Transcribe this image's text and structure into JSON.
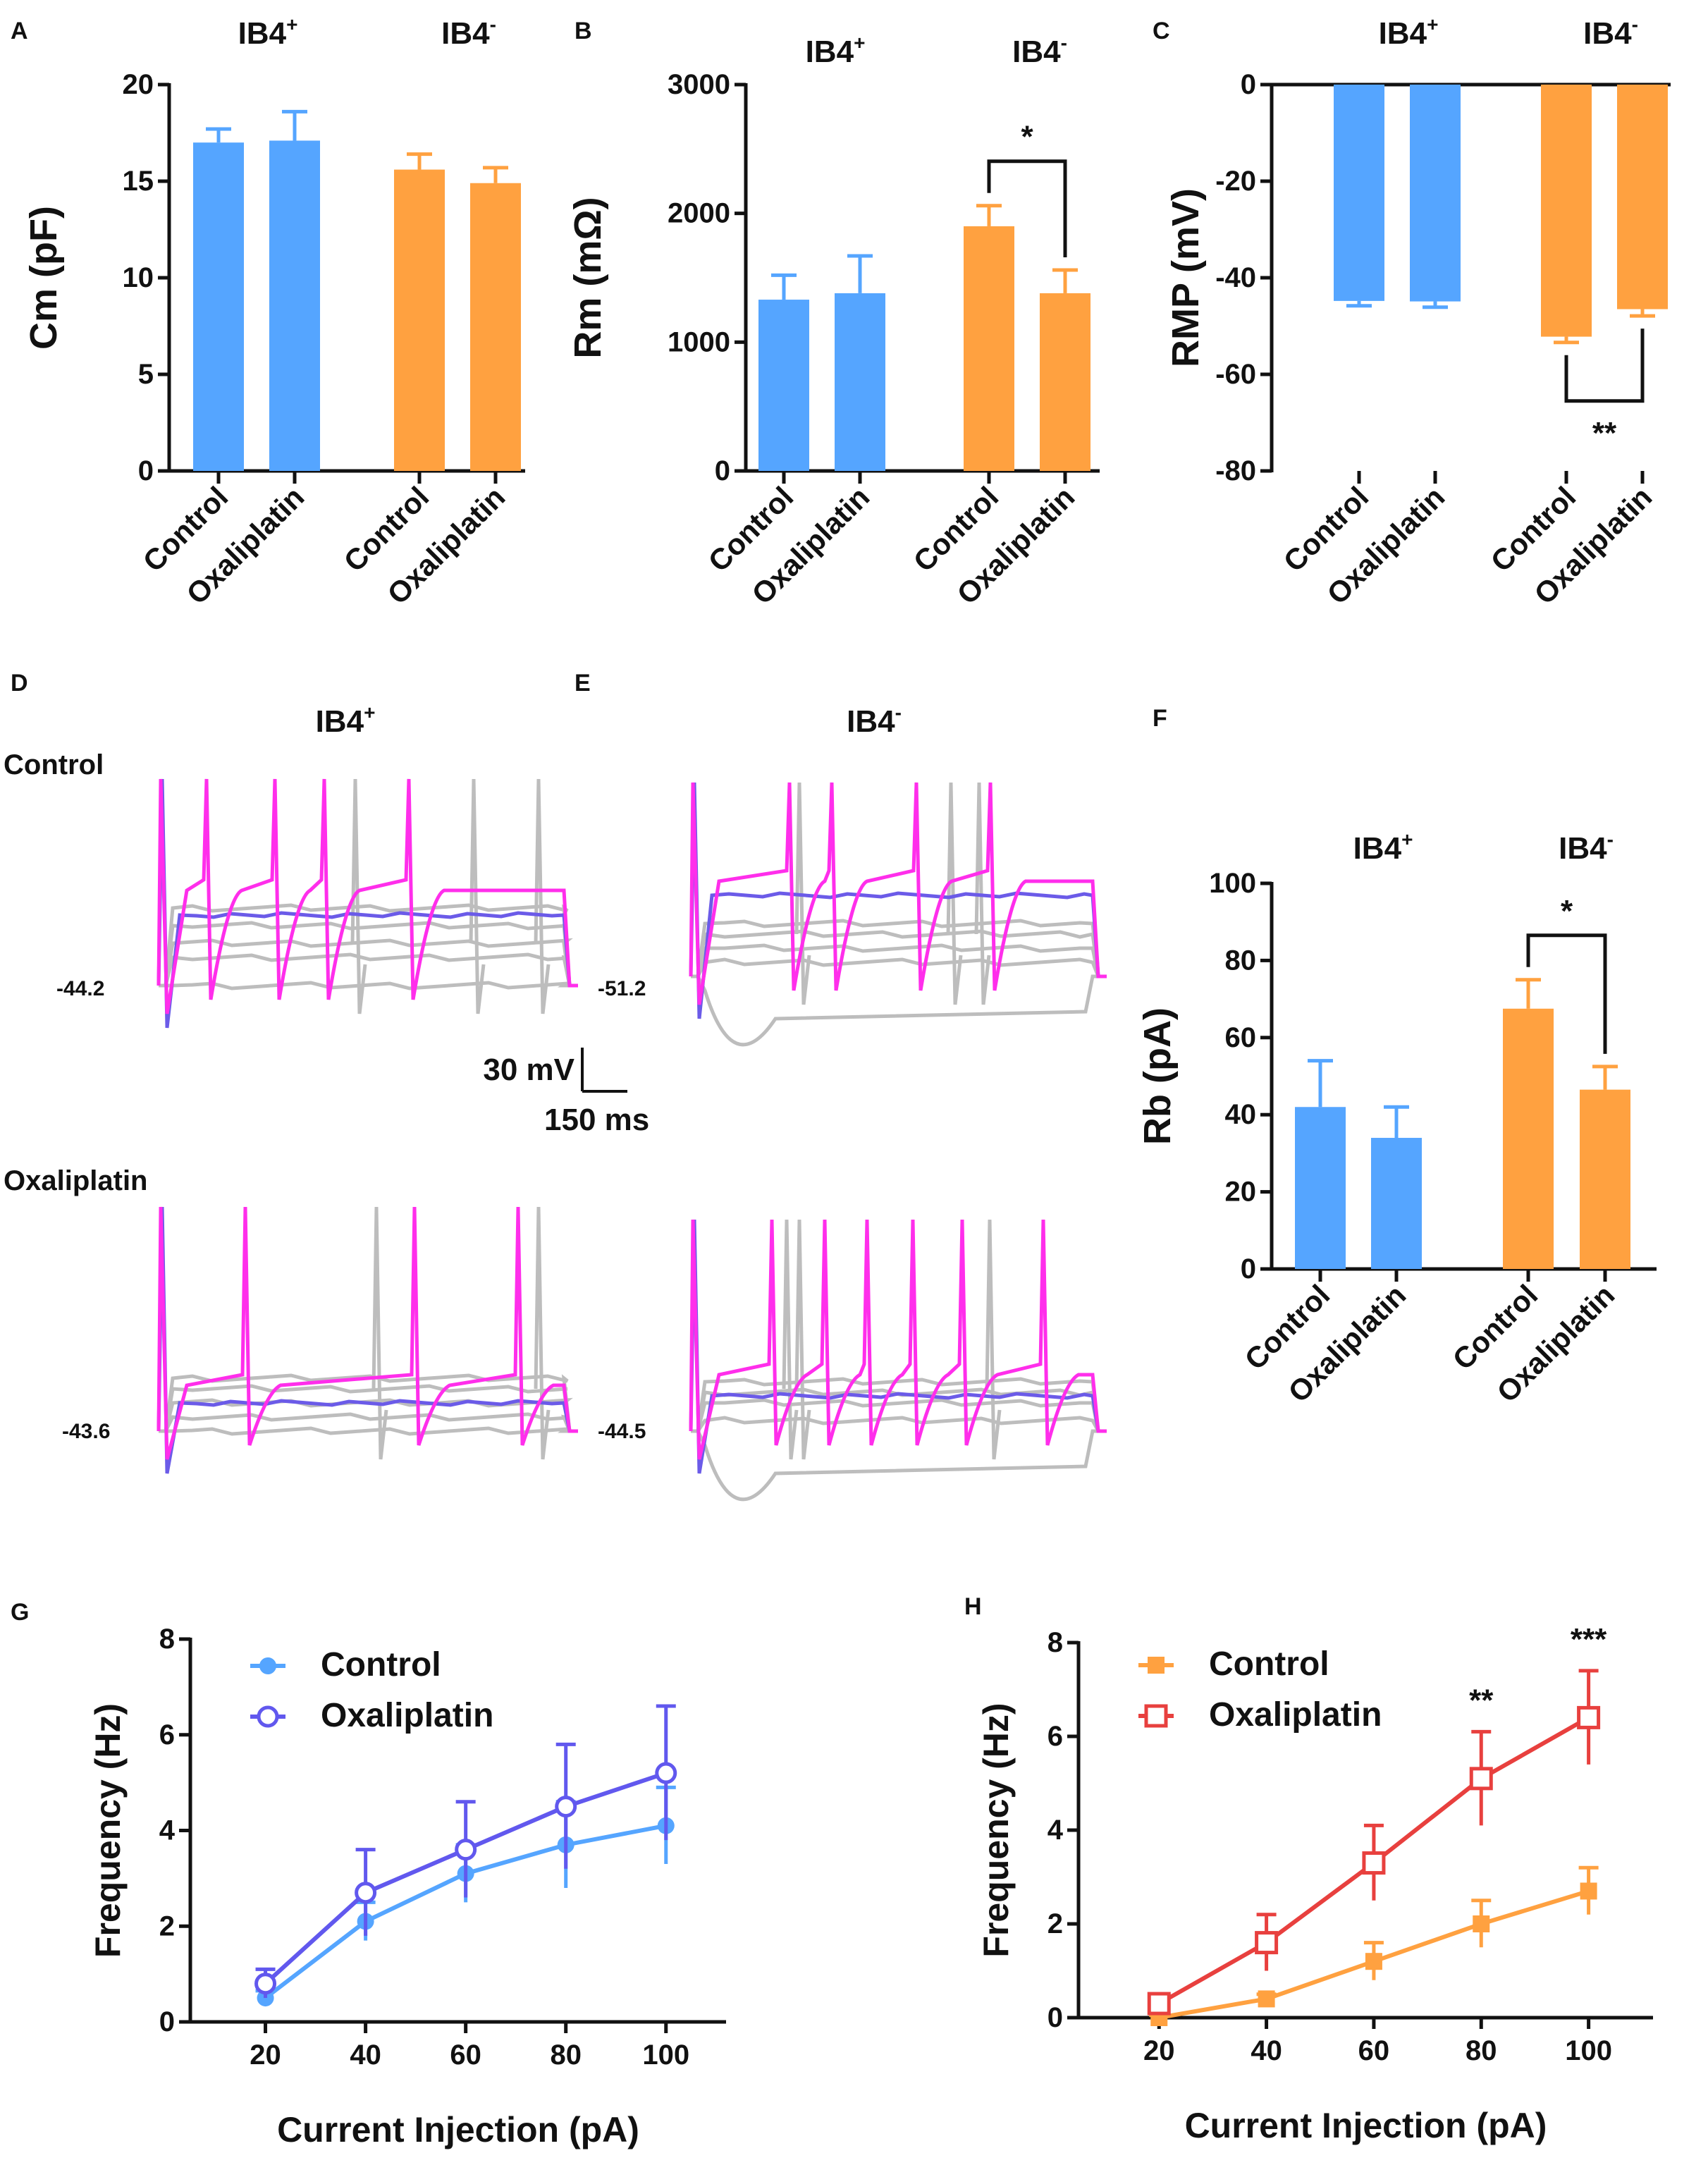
{
  "colors": {
    "ib4_pos": "#55A5FF",
    "ib4_neg": "#FFA140",
    "oxali_blue": "#6158EE",
    "oxali_red": "#E8403E",
    "trace_gray": "#BDBDBD",
    "trace_magenta": "#FF2EEB",
    "trace_purple": "#6B5BE8"
  },
  "panels": {
    "A": "A",
    "B": "B",
    "C": "C",
    "D": "D",
    "E": "E",
    "F": "F",
    "G": "G",
    "H": "H"
  },
  "group_labels": {
    "pos_base": "IB4",
    "pos_sup": "+",
    "neg_base": "IB4",
    "neg_sup": "-"
  },
  "traces": {
    "control_label": "Control",
    "oxaliplatin_label": "Oxaliplatin",
    "scale_mv": "30 mV",
    "scale_ms": "150 ms",
    "rmp_d_control": "-44.2",
    "rmp_e_control": "-51.2",
    "rmp_d_oxali": "-43.6",
    "rmp_e_oxali": "-44.5"
  },
  "chart_data": [
    {
      "id": "A",
      "type": "bar",
      "ylabel": "Cm (pF)",
      "ylim": [
        0,
        20
      ],
      "yticks": [
        "0",
        "5",
        "10",
        "15",
        "20"
      ],
      "categories": [
        "Control",
        "Oxaliplatin",
        "Control",
        "Oxaliplatin"
      ],
      "groups": [
        "IB4+",
        "IB4-"
      ],
      "values": [
        17.0,
        17.1,
        15.6,
        14.9
      ],
      "errors": [
        0.7,
        1.5,
        0.8,
        0.8
      ],
      "sig": []
    },
    {
      "id": "B",
      "type": "bar",
      "ylabel": "Rm (mΩ)",
      "ylim": [
        0,
        3000
      ],
      "yticks": [
        "0",
        "1000",
        "2000",
        "3000"
      ],
      "categories": [
        "Control",
        "Oxaliplatin",
        "Control",
        "Oxaliplatin"
      ],
      "groups": [
        "IB4+",
        "IB4-"
      ],
      "values": [
        1330,
        1380,
        1900,
        1380
      ],
      "errors": [
        190,
        290,
        160,
        180
      ],
      "sig": [
        {
          "between": [
            2,
            3
          ],
          "label": "*"
        }
      ]
    },
    {
      "id": "C",
      "type": "bar",
      "ylabel": "RMP (mV)",
      "ylim": [
        -80,
        0
      ],
      "yticks": [
        "0",
        "-20",
        "-40",
        "-60",
        "-80"
      ],
      "categories": [
        "Control",
        "Oxaliplatin",
        "Control",
        "Oxaliplatin"
      ],
      "groups": [
        "IB4+",
        "IB4-"
      ],
      "values": [
        -44.8,
        -44.9,
        -52.2,
        -46.5
      ],
      "errors": [
        1.0,
        1.2,
        1.2,
        1.4
      ],
      "sig": [
        {
          "between": [
            2,
            3
          ],
          "label": "**"
        }
      ]
    },
    {
      "id": "F",
      "type": "bar",
      "ylabel": "Rb (pA)",
      "ylim": [
        0,
        100
      ],
      "yticks": [
        "0",
        "20",
        "40",
        "60",
        "80",
        "100"
      ],
      "categories": [
        "Control",
        "Oxaliplatin",
        "Control",
        "Oxaliplatin"
      ],
      "groups": [
        "IB4+",
        "IB4-"
      ],
      "values": [
        42,
        34,
        67.5,
        46.5
      ],
      "errors": [
        12,
        8,
        7.5,
        6
      ],
      "sig": [
        {
          "between": [
            2,
            3
          ],
          "label": "*"
        }
      ]
    },
    {
      "id": "G",
      "type": "line",
      "xlabel": "Current Injection (pA)",
      "ylabel": "Frequency (Hz)",
      "x": [
        20,
        40,
        60,
        80,
        100
      ],
      "xlim": [
        5,
        112
      ],
      "ylim": [
        0,
        8
      ],
      "xticks": [
        "20",
        "40",
        "60",
        "80",
        "100"
      ],
      "yticks": [
        "0",
        "2",
        "4",
        "6",
        "8"
      ],
      "series": [
        {
          "name": "Control",
          "values": [
            0.5,
            2.1,
            3.1,
            3.7,
            4.1
          ],
          "errors": [
            0.15,
            0.4,
            0.6,
            0.9,
            0.8
          ]
        },
        {
          "name": "Oxaliplatin",
          "values": [
            0.8,
            2.7,
            3.6,
            4.5,
            5.2
          ],
          "errors": [
            0.3,
            0.9,
            1.0,
            1.3,
            1.4
          ]
        }
      ],
      "sig": []
    },
    {
      "id": "H",
      "type": "line",
      "xlabel": "Current Injection (pA)",
      "ylabel": "Frequency (Hz)",
      "x": [
        20,
        40,
        60,
        80,
        100
      ],
      "xlim": [
        5,
        112
      ],
      "ylim": [
        0,
        8
      ],
      "xticks": [
        "20",
        "40",
        "60",
        "80",
        "100"
      ],
      "yticks": [
        "0",
        "2",
        "4",
        "6",
        "8"
      ],
      "series": [
        {
          "name": "Control",
          "values": [
            0.0,
            0.4,
            1.2,
            2.0,
            2.7
          ],
          "errors": [
            0.05,
            0.1,
            0.4,
            0.5,
            0.5
          ]
        },
        {
          "name": "Oxaliplatin",
          "values": [
            0.3,
            1.6,
            3.3,
            5.1,
            6.4
          ],
          "errors": [
            0.2,
            0.6,
            0.8,
            1.0,
            1.0
          ]
        }
      ],
      "sig": [
        {
          "x": 80,
          "label": "**"
        },
        {
          "x": 100,
          "label": "***"
        }
      ]
    }
  ]
}
